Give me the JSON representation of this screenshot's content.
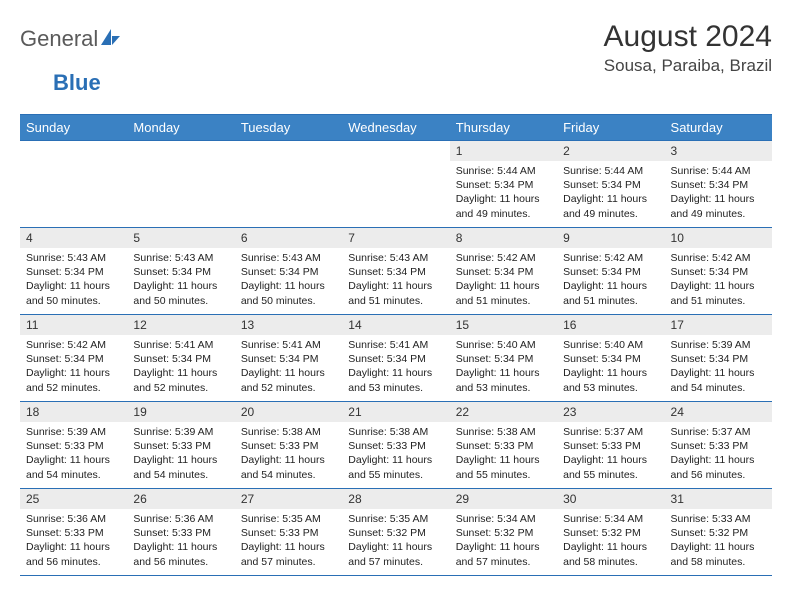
{
  "logo": {
    "part1": "General",
    "part2": "Blue"
  },
  "title": "August 2024",
  "location": "Sousa, Paraiba, Brazil",
  "colors": {
    "header_bg": "#3b82c4",
    "header_border": "#2a6fb5",
    "daynum_bg": "#ececec",
    "text": "#222222",
    "location_text": "#444444"
  },
  "typography": {
    "title_fontsize": 30,
    "location_fontsize": 17,
    "header_fontsize": 13,
    "cell_fontsize": 10.5
  },
  "weekdays": [
    "Sunday",
    "Monday",
    "Tuesday",
    "Wednesday",
    "Thursday",
    "Friday",
    "Saturday"
  ],
  "weeks": [
    [
      null,
      null,
      null,
      null,
      {
        "n": "1",
        "sr": "5:44 AM",
        "ss": "5:34 PM",
        "dl": "11 hours and 49 minutes."
      },
      {
        "n": "2",
        "sr": "5:44 AM",
        "ss": "5:34 PM",
        "dl": "11 hours and 49 minutes."
      },
      {
        "n": "3",
        "sr": "5:44 AM",
        "ss": "5:34 PM",
        "dl": "11 hours and 49 minutes."
      }
    ],
    [
      {
        "n": "4",
        "sr": "5:43 AM",
        "ss": "5:34 PM",
        "dl": "11 hours and 50 minutes."
      },
      {
        "n": "5",
        "sr": "5:43 AM",
        "ss": "5:34 PM",
        "dl": "11 hours and 50 minutes."
      },
      {
        "n": "6",
        "sr": "5:43 AM",
        "ss": "5:34 PM",
        "dl": "11 hours and 50 minutes."
      },
      {
        "n": "7",
        "sr": "5:43 AM",
        "ss": "5:34 PM",
        "dl": "11 hours and 51 minutes."
      },
      {
        "n": "8",
        "sr": "5:42 AM",
        "ss": "5:34 PM",
        "dl": "11 hours and 51 minutes."
      },
      {
        "n": "9",
        "sr": "5:42 AM",
        "ss": "5:34 PM",
        "dl": "11 hours and 51 minutes."
      },
      {
        "n": "10",
        "sr": "5:42 AM",
        "ss": "5:34 PM",
        "dl": "11 hours and 51 minutes."
      }
    ],
    [
      {
        "n": "11",
        "sr": "5:42 AM",
        "ss": "5:34 PM",
        "dl": "11 hours and 52 minutes."
      },
      {
        "n": "12",
        "sr": "5:41 AM",
        "ss": "5:34 PM",
        "dl": "11 hours and 52 minutes."
      },
      {
        "n": "13",
        "sr": "5:41 AM",
        "ss": "5:34 PM",
        "dl": "11 hours and 52 minutes."
      },
      {
        "n": "14",
        "sr": "5:41 AM",
        "ss": "5:34 PM",
        "dl": "11 hours and 53 minutes."
      },
      {
        "n": "15",
        "sr": "5:40 AM",
        "ss": "5:34 PM",
        "dl": "11 hours and 53 minutes."
      },
      {
        "n": "16",
        "sr": "5:40 AM",
        "ss": "5:34 PM",
        "dl": "11 hours and 53 minutes."
      },
      {
        "n": "17",
        "sr": "5:39 AM",
        "ss": "5:34 PM",
        "dl": "11 hours and 54 minutes."
      }
    ],
    [
      {
        "n": "18",
        "sr": "5:39 AM",
        "ss": "5:33 PM",
        "dl": "11 hours and 54 minutes."
      },
      {
        "n": "19",
        "sr": "5:39 AM",
        "ss": "5:33 PM",
        "dl": "11 hours and 54 minutes."
      },
      {
        "n": "20",
        "sr": "5:38 AM",
        "ss": "5:33 PM",
        "dl": "11 hours and 54 minutes."
      },
      {
        "n": "21",
        "sr": "5:38 AM",
        "ss": "5:33 PM",
        "dl": "11 hours and 55 minutes."
      },
      {
        "n": "22",
        "sr": "5:38 AM",
        "ss": "5:33 PM",
        "dl": "11 hours and 55 minutes."
      },
      {
        "n": "23",
        "sr": "5:37 AM",
        "ss": "5:33 PM",
        "dl": "11 hours and 55 minutes."
      },
      {
        "n": "24",
        "sr": "5:37 AM",
        "ss": "5:33 PM",
        "dl": "11 hours and 56 minutes."
      }
    ],
    [
      {
        "n": "25",
        "sr": "5:36 AM",
        "ss": "5:33 PM",
        "dl": "11 hours and 56 minutes."
      },
      {
        "n": "26",
        "sr": "5:36 AM",
        "ss": "5:33 PM",
        "dl": "11 hours and 56 minutes."
      },
      {
        "n": "27",
        "sr": "5:35 AM",
        "ss": "5:33 PM",
        "dl": "11 hours and 57 minutes."
      },
      {
        "n": "28",
        "sr": "5:35 AM",
        "ss": "5:32 PM",
        "dl": "11 hours and 57 minutes."
      },
      {
        "n": "29",
        "sr": "5:34 AM",
        "ss": "5:32 PM",
        "dl": "11 hours and 57 minutes."
      },
      {
        "n": "30",
        "sr": "5:34 AM",
        "ss": "5:32 PM",
        "dl": "11 hours and 58 minutes."
      },
      {
        "n": "31",
        "sr": "5:33 AM",
        "ss": "5:32 PM",
        "dl": "11 hours and 58 minutes."
      }
    ]
  ],
  "labels": {
    "sunrise": "Sunrise: ",
    "sunset": "Sunset: ",
    "daylight": "Daylight: "
  }
}
